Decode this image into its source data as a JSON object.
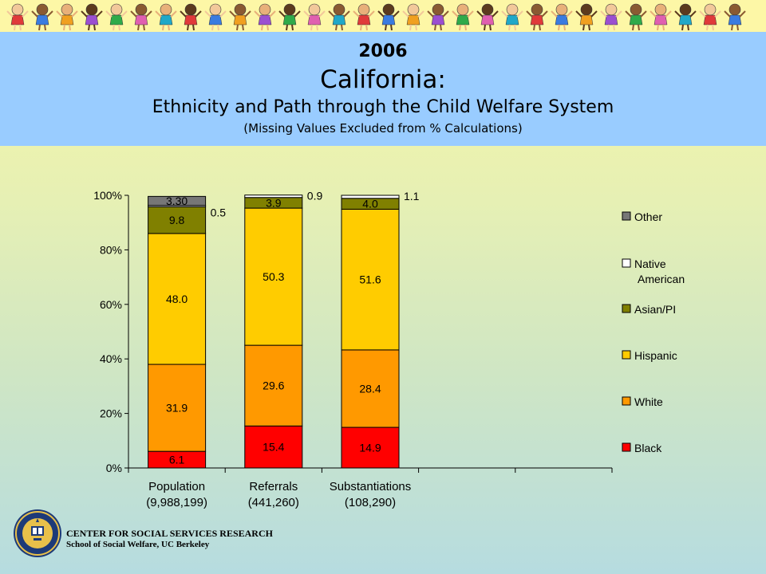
{
  "header": {
    "year": "2006",
    "state": "California:",
    "subtitle": "Ethnicity and Path through the Child Welfare System",
    "note": "(Missing Values Excluded from % Calculations)"
  },
  "footer": {
    "org_name": "CENTER FOR SOCIAL SERVICES RESEARCH",
    "school": "School of Social Welfare, UC Berkeley"
  },
  "chart_data": {
    "type": "bar",
    "stacked": true,
    "categories": [
      "Population (9,988,199)",
      "Referrals (441,260)",
      "Substantiations (108,290)"
    ],
    "category_lines": [
      [
        "Population",
        "(9,988,199)"
      ],
      [
        "Referrals",
        "(441,260)"
      ],
      [
        "Substantiations",
        "(108,290)"
      ]
    ],
    "empty_slots": 2,
    "ylim": [
      0,
      100
    ],
    "yticks": [
      "0%",
      "20%",
      "40%",
      "60%",
      "80%",
      "100%"
    ],
    "series": [
      {
        "name": "Black",
        "color": "#ff0000",
        "values": [
          6.1,
          15.4,
          14.9
        ],
        "labels": [
          "6.1",
          "15.4",
          "14.9"
        ]
      },
      {
        "name": "White",
        "color": "#ff9900",
        "values": [
          31.9,
          29.6,
          28.4
        ],
        "labels": [
          "31.9",
          "29.6",
          "28.4"
        ]
      },
      {
        "name": "Hispanic",
        "color": "#ffcc00",
        "values": [
          48.0,
          50.3,
          51.6
        ],
        "labels": [
          "48.0",
          "50.3",
          "51.6"
        ]
      },
      {
        "name": "Asian/PI",
        "color": "#808000",
        "values": [
          9.8,
          3.9,
          4.0
        ],
        "labels": [
          "9.8",
          "3.9",
          "4.0"
        ]
      },
      {
        "name": "Native American",
        "legend_lines": [
          "Native",
          "American"
        ],
        "color": "#ffffff",
        "values": [
          0.5,
          0.9,
          1.1
        ],
        "labels": [
          "0.5",
          "0.9",
          "1.1"
        ]
      },
      {
        "name": "Other",
        "color": "#777777",
        "values": [
          3.3,
          0.0,
          0.0
        ],
        "labels": [
          "3.30",
          "",
          ""
        ]
      }
    ],
    "legend_position": "right",
    "grid": false
  }
}
